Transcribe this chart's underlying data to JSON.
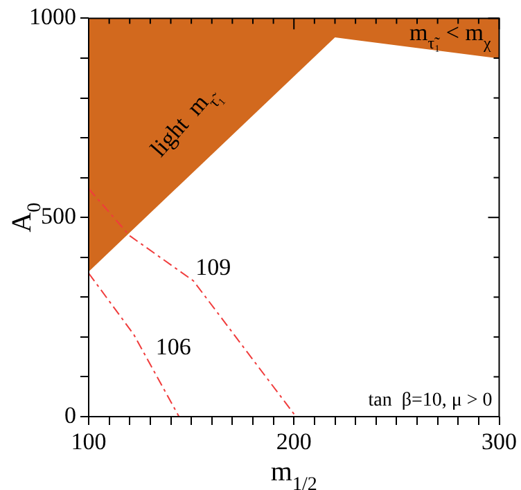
{
  "chart_data": {
    "type": "line",
    "xlabel": "m$_{1/2}$",
    "ylabel": "A$_{0}$",
    "xlim": [
      100,
      300
    ],
    "ylim": [
      0,
      1000
    ],
    "xticks": [
      100,
      {
        "value": 110,
        "label": null
      },
      {
        "value": 120,
        "label": null
      },
      {
        "value": 130,
        "label": null
      },
      {
        "value": 140,
        "label": null
      },
      {
        "value": 150,
        "label": null
      },
      {
        "value": 160,
        "label": null
      },
      {
        "value": 170,
        "label": null
      },
      {
        "value": 180,
        "label": null
      },
      {
        "value": 190,
        "label": null
      },
      200,
      {
        "value": 210,
        "label": null
      },
      {
        "value": 220,
        "label": null
      },
      {
        "value": 230,
        "label": null
      },
      {
        "value": 240,
        "label": null
      },
      {
        "value": 250,
        "label": null
      },
      {
        "value": 260,
        "label": null
      },
      {
        "value": 270,
        "label": null
      },
      {
        "value": 280,
        "label": null
      },
      {
        "value": 290,
        "label": null
      },
      300
    ],
    "yticks": [
      0,
      {
        "value": 100,
        "label": null
      },
      {
        "value": 200,
        "label": null
      },
      {
        "value": 300,
        "label": null
      },
      {
        "value": 400,
        "label": null
      },
      500,
      {
        "value": 600,
        "label": null
      },
      {
        "value": 700,
        "label": null
      },
      {
        "value": 800,
        "label": null
      },
      {
        "value": 900,
        "label": null
      },
      1000
    ],
    "grid": false,
    "legend": false,
    "line_style": "dashed",
    "marker": "none",
    "series": [
      {
        "type": "area",
        "color": "#d2691e",
        "x": [
          100,
          100,
          220,
          300,
          300
        ],
        "values": [
          1000,
          364,
          952,
          899,
          1000
        ]
      },
      {
        "name": "106",
        "color": "#f03c3c",
        "x": [
          100,
          122,
          144
        ],
        "values": [
          360,
          206,
          0
        ]
      },
      {
        "name": "109",
        "color": "#f03c3c",
        "x": [
          100,
          120,
          151,
          201
        ],
        "values": [
          572,
          454,
          341,
          0
        ]
      }
    ],
    "annotations": [
      "light  m$_{τ̃₁}$",
      "m$_{τ̃₁}$ < m$_{χ}$",
      "tan  β=10, μ > 0"
    ]
  }
}
